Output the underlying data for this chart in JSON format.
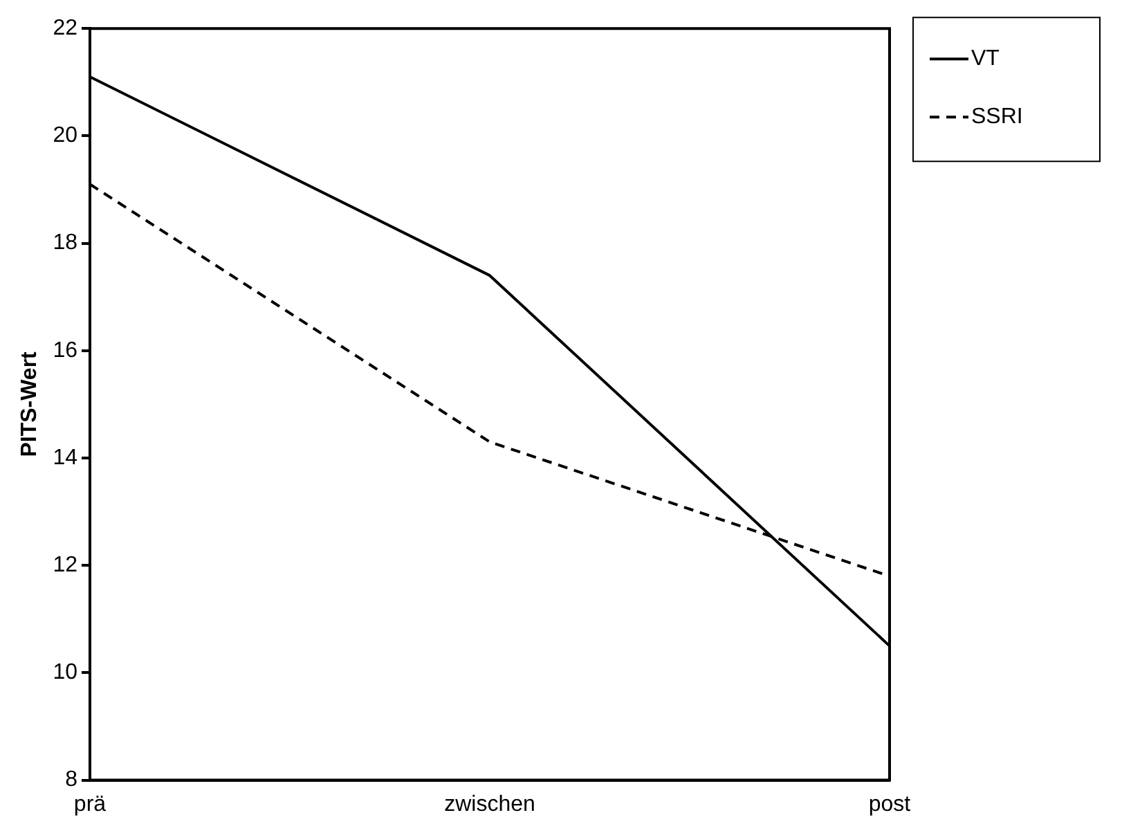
{
  "chart_data": {
    "type": "line",
    "ylabel": "PITS-Wert",
    "categories": [
      "prä",
      "zwischen",
      "post"
    ],
    "series": [
      {
        "name": "VT",
        "color": "#000000",
        "values": [
          21.1,
          17.4,
          10.5
        ],
        "line_style": "solid"
      },
      {
        "name": "SSRI",
        "color": "#000000",
        "values": [
          19.1,
          14.3,
          11.8
        ],
        "line_style": "dashed"
      }
    ],
    "ylim": [
      8,
      22
    ],
    "yticks": [
      8,
      10,
      12,
      14,
      16,
      18,
      20,
      22
    ],
    "grid": false,
    "legend": "top right",
    "marker": "none"
  }
}
